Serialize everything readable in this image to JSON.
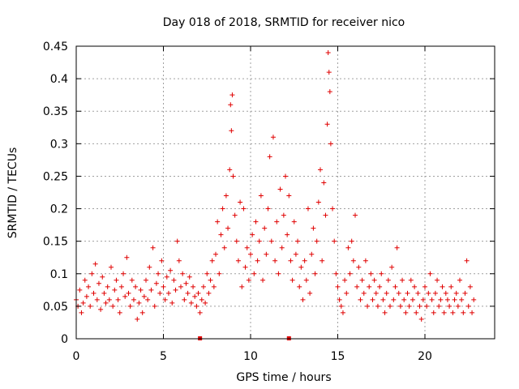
{
  "chart_data": {
    "type": "scatter",
    "title": "Day 018 of 2018, SRMTID for receiver nico",
    "xlabel": "GPS time / hours",
    "ylabel": "SRMTID / TECUs",
    "xlim": [
      0,
      24
    ],
    "ylim": [
      0,
      0.45
    ],
    "xticks": [
      0,
      5,
      10,
      15,
      20
    ],
    "yticks": [
      0,
      0.05,
      0.1,
      0.15,
      0.2,
      0.25,
      0.3,
      0.35,
      0.4,
      0.45
    ],
    "ytick_labels": [
      "0",
      "0.05",
      "0.1",
      "0.15",
      "0.2",
      "0.25",
      "0.3",
      "0.35",
      "0.4",
      "0.45"
    ],
    "grid": true,
    "marker": "+",
    "series_color": "#e00000",
    "zero_markers_x": [
      7.1,
      12.2
    ],
    "points": [
      [
        0.0,
        0.06
      ],
      [
        0.1,
        0.05
      ],
      [
        0.2,
        0.075
      ],
      [
        0.3,
        0.04
      ],
      [
        0.4,
        0.055
      ],
      [
        0.5,
        0.09
      ],
      [
        0.6,
        0.065
      ],
      [
        0.7,
        0.08
      ],
      [
        0.8,
        0.05
      ],
      [
        0.9,
        0.1
      ],
      [
        1.0,
        0.07
      ],
      [
        1.1,
        0.115
      ],
      [
        1.2,
        0.06
      ],
      [
        1.3,
        0.085
      ],
      [
        1.4,
        0.045
      ],
      [
        1.5,
        0.095
      ],
      [
        1.6,
        0.07
      ],
      [
        1.7,
        0.055
      ],
      [
        1.8,
        0.08
      ],
      [
        1.9,
        0.06
      ],
      [
        2.0,
        0.11
      ],
      [
        2.1,
        0.05
      ],
      [
        2.2,
        0.075
      ],
      [
        2.3,
        0.09
      ],
      [
        2.4,
        0.06
      ],
      [
        2.5,
        0.04
      ],
      [
        2.6,
        0.08
      ],
      [
        2.7,
        0.1
      ],
      [
        2.8,
        0.065
      ],
      [
        2.9,
        0.125
      ],
      [
        3.0,
        0.07
      ],
      [
        3.1,
        0.05
      ],
      [
        3.2,
        0.09
      ],
      [
        3.3,
        0.06
      ],
      [
        3.4,
        0.08
      ],
      [
        3.5,
        0.03
      ],
      [
        3.6,
        0.055
      ],
      [
        3.7,
        0.075
      ],
      [
        3.8,
        0.04
      ],
      [
        3.9,
        0.065
      ],
      [
        4.0,
        0.09
      ],
      [
        4.1,
        0.06
      ],
      [
        4.2,
        0.11
      ],
      [
        4.3,
        0.075
      ],
      [
        4.4,
        0.14
      ],
      [
        4.5,
        0.05
      ],
      [
        4.6,
        0.085
      ],
      [
        4.7,
        0.1
      ],
      [
        4.8,
        0.07
      ],
      [
        4.9,
        0.12
      ],
      [
        5.0,
        0.08
      ],
      [
        5.1,
        0.06
      ],
      [
        5.2,
        0.095
      ],
      [
        5.3,
        0.07
      ],
      [
        5.4,
        0.105
      ],
      [
        5.5,
        0.055
      ],
      [
        5.6,
        0.09
      ],
      [
        5.7,
        0.075
      ],
      [
        5.8,
        0.15
      ],
      [
        5.9,
        0.12
      ],
      [
        6.0,
        0.08
      ],
      [
        6.1,
        0.1
      ],
      [
        6.2,
        0.06
      ],
      [
        6.3,
        0.085
      ],
      [
        6.4,
        0.07
      ],
      [
        6.5,
        0.095
      ],
      [
        6.6,
        0.055
      ],
      [
        6.7,
        0.08
      ],
      [
        6.8,
        0.065
      ],
      [
        6.9,
        0.05
      ],
      [
        7.0,
        0.07
      ],
      [
        7.1,
        0.04
      ],
      [
        7.2,
        0.06
      ],
      [
        7.3,
        0.08
      ],
      [
        7.4,
        0.055
      ],
      [
        7.5,
        0.1
      ],
      [
        7.6,
        0.07
      ],
      [
        7.7,
        0.09
      ],
      [
        7.8,
        0.12
      ],
      [
        7.9,
        0.08
      ],
      [
        8.0,
        0.13
      ],
      [
        8.1,
        0.18
      ],
      [
        8.2,
        0.1
      ],
      [
        8.3,
        0.16
      ],
      [
        8.4,
        0.2
      ],
      [
        8.5,
        0.14
      ],
      [
        8.6,
        0.22
      ],
      [
        8.7,
        0.17
      ],
      [
        8.8,
        0.26
      ],
      [
        8.85,
        0.36
      ],
      [
        8.9,
        0.32
      ],
      [
        8.95,
        0.375
      ],
      [
        9.0,
        0.25
      ],
      [
        9.1,
        0.19
      ],
      [
        9.2,
        0.15
      ],
      [
        9.3,
        0.12
      ],
      [
        9.4,
        0.21
      ],
      [
        9.5,
        0.08
      ],
      [
        9.6,
        0.2
      ],
      [
        9.7,
        0.11
      ],
      [
        9.8,
        0.14
      ],
      [
        9.9,
        0.09
      ],
      [
        10.0,
        0.13
      ],
      [
        10.1,
        0.16
      ],
      [
        10.2,
        0.1
      ],
      [
        10.3,
        0.18
      ],
      [
        10.4,
        0.12
      ],
      [
        10.5,
        0.15
      ],
      [
        10.6,
        0.22
      ],
      [
        10.7,
        0.09
      ],
      [
        10.8,
        0.17
      ],
      [
        10.9,
        0.13
      ],
      [
        11.0,
        0.2
      ],
      [
        11.1,
        0.28
      ],
      [
        11.2,
        0.15
      ],
      [
        11.3,
        0.31
      ],
      [
        11.4,
        0.12
      ],
      [
        11.5,
        0.18
      ],
      [
        11.6,
        0.1
      ],
      [
        11.7,
        0.23
      ],
      [
        11.8,
        0.14
      ],
      [
        11.9,
        0.19
      ],
      [
        12.0,
        0.25
      ],
      [
        12.1,
        0.16
      ],
      [
        12.2,
        0.22
      ],
      [
        12.3,
        0.12
      ],
      [
        12.4,
        0.09
      ],
      [
        12.5,
        0.18
      ],
      [
        12.6,
        0.13
      ],
      [
        12.7,
        0.15
      ],
      [
        12.8,
        0.08
      ],
      [
        12.9,
        0.11
      ],
      [
        13.0,
        0.06
      ],
      [
        13.1,
        0.12
      ],
      [
        13.2,
        0.09
      ],
      [
        13.3,
        0.2
      ],
      [
        13.4,
        0.07
      ],
      [
        13.5,
        0.13
      ],
      [
        13.6,
        0.17
      ],
      [
        13.7,
        0.1
      ],
      [
        13.8,
        0.15
      ],
      [
        13.9,
        0.21
      ],
      [
        14.0,
        0.26
      ],
      [
        14.1,
        0.12
      ],
      [
        14.2,
        0.24
      ],
      [
        14.3,
        0.19
      ],
      [
        14.4,
        0.33
      ],
      [
        14.45,
        0.44
      ],
      [
        14.5,
        0.41
      ],
      [
        14.55,
        0.38
      ],
      [
        14.6,
        0.3
      ],
      [
        14.7,
        0.2
      ],
      [
        14.8,
        0.15
      ],
      [
        14.9,
        0.1
      ],
      [
        15.0,
        0.08
      ],
      [
        15.1,
        0.06
      ],
      [
        15.2,
        0.05
      ],
      [
        15.3,
        0.04
      ],
      [
        15.4,
        0.09
      ],
      [
        15.5,
        0.07
      ],
      [
        15.6,
        0.14
      ],
      [
        15.7,
        0.1
      ],
      [
        15.8,
        0.15
      ],
      [
        15.9,
        0.12
      ],
      [
        16.0,
        0.19
      ],
      [
        16.1,
        0.08
      ],
      [
        16.2,
        0.11
      ],
      [
        16.3,
        0.06
      ],
      [
        16.4,
        0.09
      ],
      [
        16.5,
        0.07
      ],
      [
        16.6,
        0.12
      ],
      [
        16.7,
        0.05
      ],
      [
        16.8,
        0.08
      ],
      [
        16.9,
        0.1
      ],
      [
        17.0,
        0.06
      ],
      [
        17.1,
        0.09
      ],
      [
        17.2,
        0.07
      ],
      [
        17.3,
        0.05
      ],
      [
        17.4,
        0.08
      ],
      [
        17.5,
        0.1
      ],
      [
        17.6,
        0.06
      ],
      [
        17.7,
        0.04
      ],
      [
        17.8,
        0.07
      ],
      [
        17.9,
        0.09
      ],
      [
        18.0,
        0.05
      ],
      [
        18.1,
        0.11
      ],
      [
        18.2,
        0.06
      ],
      [
        18.3,
        0.08
      ],
      [
        18.4,
        0.14
      ],
      [
        18.5,
        0.07
      ],
      [
        18.6,
        0.05
      ],
      [
        18.7,
        0.09
      ],
      [
        18.8,
        0.06
      ],
      [
        18.9,
        0.04
      ],
      [
        19.0,
        0.07
      ],
      [
        19.1,
        0.05
      ],
      [
        19.2,
        0.09
      ],
      [
        19.3,
        0.06
      ],
      [
        19.4,
        0.08
      ],
      [
        19.5,
        0.04
      ],
      [
        19.6,
        0.07
      ],
      [
        19.7,
        0.05
      ],
      [
        19.8,
        0.03
      ],
      [
        19.9,
        0.06
      ],
      [
        20.0,
        0.08
      ],
      [
        20.1,
        0.05
      ],
      [
        20.2,
        0.07
      ],
      [
        20.3,
        0.1
      ],
      [
        20.4,
        0.06
      ],
      [
        20.5,
        0.04
      ],
      [
        20.6,
        0.07
      ],
      [
        20.7,
        0.09
      ],
      [
        20.8,
        0.05
      ],
      [
        20.9,
        0.06
      ],
      [
        21.0,
        0.08
      ],
      [
        21.1,
        0.04
      ],
      [
        21.2,
        0.07
      ],
      [
        21.3,
        0.06
      ],
      [
        21.4,
        0.05
      ],
      [
        21.5,
        0.08
      ],
      [
        21.6,
        0.04
      ],
      [
        21.7,
        0.06
      ],
      [
        21.8,
        0.07
      ],
      [
        21.9,
        0.05
      ],
      [
        22.0,
        0.09
      ],
      [
        22.1,
        0.06
      ],
      [
        22.2,
        0.04
      ],
      [
        22.3,
        0.07
      ],
      [
        22.4,
        0.12
      ],
      [
        22.5,
        0.05
      ],
      [
        22.6,
        0.08
      ],
      [
        22.7,
        0.04
      ],
      [
        22.8,
        0.06
      ]
    ]
  }
}
